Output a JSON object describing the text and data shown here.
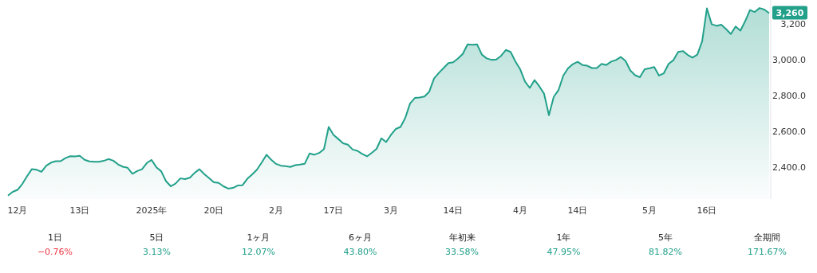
{
  "chart_data": {
    "type": "area",
    "categories": [
      null,
      null,
      "12月",
      null,
      null,
      null,
      null,
      null,
      null,
      null,
      null,
      null,
      null,
      null,
      null,
      "13日",
      null,
      null,
      null,
      null,
      null,
      null,
      null,
      null,
      null,
      null,
      null,
      null,
      null,
      null,
      "2025年",
      null,
      null,
      null,
      null,
      null,
      null,
      null,
      null,
      null,
      null,
      null,
      null,
      "20日",
      null,
      null,
      null,
      null,
      null,
      null,
      null,
      null,
      null,
      null,
      null,
      null,
      "2月",
      null,
      null,
      null,
      null,
      null,
      null,
      null,
      null,
      null,
      null,
      null,
      "17日",
      null,
      null,
      null,
      null,
      null,
      null,
      null,
      null,
      null,
      null,
      null,
      "3月",
      null,
      null,
      null,
      null,
      null,
      null,
      null,
      null,
      null,
      null,
      null,
      null,
      "14日",
      null,
      null,
      null,
      null,
      null,
      null,
      null,
      null,
      null,
      null,
      null,
      null,
      null,
      "4月",
      null,
      null,
      null,
      null,
      null,
      null,
      null,
      null,
      null,
      null,
      null,
      "14日",
      null,
      null,
      null,
      null,
      null,
      null,
      null,
      null,
      null,
      null,
      null,
      null,
      null,
      null,
      "5月",
      null,
      null,
      null,
      null,
      null,
      null,
      null,
      null,
      null,
      null,
      null,
      "16日",
      null,
      null,
      null,
      null,
      null,
      null,
      null,
      null,
      null,
      null,
      null,
      null,
      null
    ],
    "series": [
      {
        "color": "#22a08a",
        "values": [
          2241,
          2262,
          2273,
          2306,
          2350,
          2389,
          2385,
          2374,
          2408,
          2425,
          2433,
          2433,
          2450,
          2461,
          2460,
          2463,
          2441,
          2432,
          2430,
          2430,
          2435,
          2445,
          2436,
          2415,
          2402,
          2396,
          2363,
          2378,
          2388,
          2423,
          2440,
          2399,
          2377,
          2322,
          2293,
          2308,
          2337,
          2333,
          2341,
          2368,
          2388,
          2361,
          2339,
          2315,
          2312,
          2293,
          2280,
          2284,
          2297,
          2299,
          2335,
          2359,
          2385,
          2425,
          2469,
          2441,
          2418,
          2408,
          2405,
          2401,
          2411,
          2414,
          2419,
          2476,
          2469,
          2479,
          2500,
          2624,
          2580,
          2557,
          2533,
          2525,
          2498,
          2491,
          2474,
          2460,
          2480,
          2502,
          2561,
          2540,
          2580,
          2613,
          2624,
          2675,
          2756,
          2786,
          2789,
          2794,
          2821,
          2895,
          2926,
          2953,
          2981,
          2985,
          3006,
          3032,
          3085,
          3083,
          3085,
          3028,
          3007,
          2999,
          3001,
          3021,
          3054,
          3043,
          2990,
          2946,
          2878,
          2842,
          2886,
          2851,
          2809,
          2690,
          2792,
          2830,
          2911,
          2952,
          2975,
          2988,
          2970,
          2966,
          2953,
          2953,
          2976,
          2970,
          2989,
          2998,
          3015,
          2993,
          2940,
          2913,
          2902,
          2946,
          2952,
          2959,
          2911,
          2924,
          2976,
          2997,
          3043,
          3048,
          3026,
          3011,
          3028,
          3101,
          3286,
          3198,
          3189,
          3195,
          3171,
          3143,
          3185,
          3162,
          3215,
          3277,
          3266,
          3288,
          3280,
          3260
        ]
      }
    ],
    "ylim": [
      2222,
      3333
    ],
    "yticks": [
      {
        "value": 2400,
        "label": "2,400.0"
      },
      {
        "value": 2600,
        "label": "2,600.0"
      },
      {
        "value": 2800,
        "label": "2,800.0"
      },
      {
        "value": 3000,
        "label": "3,000.0"
      },
      {
        "value": 3200,
        "label": "3,200"
      }
    ],
    "grid": false,
    "annotations": [
      {
        "text": "3,260",
        "y": 3260
      },
      "1日",
      "−0.76%",
      "5日",
      "3.13%",
      "1ヶ月",
      "12.07%",
      "6ヶ月",
      "43.80%",
      "年初来",
      "33.58%",
      "1年",
      "47.95%",
      "5年",
      "81.82%",
      "全期間",
      "171.67%"
    ]
  }
}
